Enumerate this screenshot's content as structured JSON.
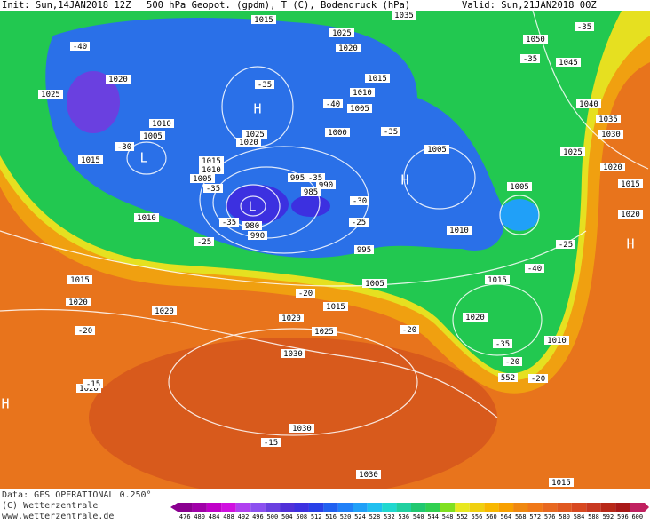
{
  "header": {
    "init": "Init: Sun,14JAN2018 12Z",
    "title": "500 hPa Geopot. (gpdm), T (C), Bodendruck (hPa)",
    "valid": "Valid: Sun,21JAN2018 00Z"
  },
  "footer": {
    "data": "Data: GFS OPERATIONAL 0.250°",
    "copyright": "(C) Wetterzentrale",
    "url": "www.wetterzentrale.de"
  },
  "isobar_labels": [
    "1015",
    "1035",
    "1025",
    "1020",
    "1050",
    "1045",
    "1015",
    "1010",
    "1005",
    "1025",
    "1020",
    "1010",
    "1005",
    "1015",
    "1015",
    "1010",
    "1005",
    "1025",
    "1020",
    "1000",
    "995",
    "990",
    "985",
    "980",
    "990",
    "1005",
    "1005",
    "1010",
    "995",
    "1005",
    "1015",
    "1010",
    "1015",
    "1020",
    "1020",
    "1020",
    "1015",
    "1025",
    "1020",
    "1010",
    "1030",
    "1020",
    "1030",
    "1030",
    "1015",
    "1040",
    "1035",
    "1030",
    "1025",
    "1020",
    "1015",
    "1020"
  ],
  "temperature_labels": [
    "-40",
    "-35",
    "-35",
    "-35",
    "-40",
    "-35",
    "-30",
    "-35",
    "-35",
    "-30",
    "-35",
    "-25",
    "-25",
    "-25",
    "-40",
    "-20",
    "-20",
    "-20",
    "-35",
    "-20",
    "-20",
    "-15",
    "-15",
    "552"
  ],
  "pressure_centers": [
    "H",
    "L",
    "L",
    "H",
    "H",
    "H"
  ],
  "scale": {
    "values": [
      476,
      480,
      484,
      488,
      492,
      496,
      500,
      504,
      508,
      512,
      516,
      520,
      524,
      528,
      532,
      536,
      540,
      544,
      548,
      552,
      556,
      560,
      564,
      568,
      572,
      576,
      580,
      584,
      588,
      592,
      596,
      600
    ],
    "colors": [
      "#8a0090",
      "#a000a8",
      "#c000c8",
      "#d010e0",
      "#b040f0",
      "#8c50f0",
      "#6a40e0",
      "#5030d8",
      "#3c30e0",
      "#2840e8",
      "#2060f0",
      "#2080f8",
      "#20a0f8",
      "#20c0f0",
      "#20d8d0",
      "#20d0a0",
      "#20c870",
      "#30d050",
      "#80e020",
      "#e8e820",
      "#f0d010",
      "#f8b800",
      "#f8a000",
      "#f08810",
      "#f07818",
      "#e86820",
      "#e05820",
      "#d84820",
      "#c83820",
      "#b82818",
      "#a81818",
      "#c02060"
    ]
  }
}
